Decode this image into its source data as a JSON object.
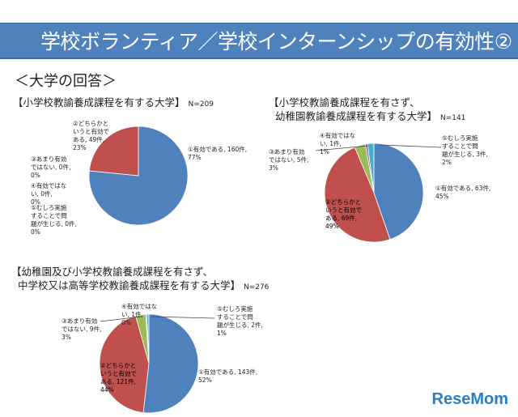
{
  "header": {
    "title": "学校ボランティア／学校インターンシップの有効性②",
    "subtitle": "＜大学の回答＞"
  },
  "colors": [
    "#4f81bd",
    "#c0504d",
    "#9bbb59",
    "#8064a2",
    "#4bacc6"
  ],
  "logo": "ReseMom",
  "chart_data": [
    {
      "type": "pie",
      "title": "【小学校教諭養成課程を有する大学】",
      "n": "N=209",
      "categories": [
        "①有効である",
        "②どちらかというと有効である",
        "③あまり有効ではない",
        "④有効ではない",
        "⑤むしろ実施することで問題が生じる"
      ],
      "values": [
        160,
        49,
        0,
        0,
        0
      ],
      "percents": [
        77,
        23,
        0,
        0,
        0
      ],
      "labels": [
        "①有効である, 160件, 77%",
        "②どちらかというと有効である, 49件, 23%",
        "③あまり有効ではない, 0件, 0%",
        "④有効ではない, 0件, 0%",
        "⑤むしろ実施することで問題が生じる, 0件, 0%"
      ]
    },
    {
      "type": "pie",
      "title": "【小学校教諭養成課程を有さず、",
      "title2": "幼稚園教諭養成課程を有する大学】",
      "n": "N=141",
      "categories": [
        "①有効である",
        "②どちらかというと有効である",
        "③あまり有効ではない",
        "④有効ではない",
        "⑤むしろ実施することで問題が生じる"
      ],
      "values": [
        63,
        69,
        5,
        1,
        3
      ],
      "percents": [
        45,
        49,
        3,
        1,
        2
      ],
      "labels": [
        "①有効である, 63件, 45%",
        "②どちらかというと有効である, 69件, 49%",
        "③あまり有効ではない, 5件, 3%",
        "④有効ではない, 1件, 1%",
        "⑤むしろ実施することで問題が生じる, 3件, 2%"
      ]
    },
    {
      "type": "pie",
      "title": "【幼稚園及び小学校教諭養成課程を有さず、",
      "title2": "中学校又は高等学校教諭養成課程を有する大学】",
      "n": "N=276",
      "categories": [
        "①有効である",
        "②どちらかというと有効である",
        "③あまり有効ではない",
        "④有効ではない",
        "⑤むしろ実施することで問題が生じる"
      ],
      "values": [
        143,
        121,
        9,
        1,
        2
      ],
      "percents": [
        52,
        44,
        3,
        0,
        1
      ],
      "labels": [
        "①有効である, 143件, 52%",
        "②どちらかというと有効である, 121件, 44%",
        "③あまり有効ではない, 9件, 3%",
        "④有効ではない, 1件, 0%",
        "⑤むしろ実施することで問題が生じる, 2件, 1%"
      ]
    }
  ]
}
